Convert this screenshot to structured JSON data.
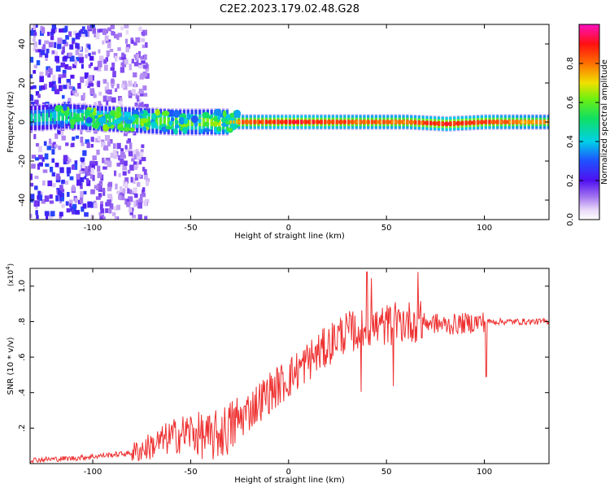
{
  "title": "C2E2.2023.179.02.48.G28",
  "chart_data": [
    {
      "type": "heatmap",
      "xlabel": "Height of straight line (km)",
      "ylabel": "Frequency (Hz)",
      "xlim": [
        -132,
        133
      ],
      "ylim": [
        -50,
        50
      ],
      "xticks": [
        -100,
        -50,
        0,
        50,
        100
      ],
      "yticks": [
        -40,
        -20,
        0,
        20,
        40
      ],
      "colorbar": {
        "label": "Normalized spectral amplitude",
        "range": [
          0,
          1
        ],
        "ticks": [
          0.0,
          0.2,
          0.4,
          0.6,
          0.8
        ]
      },
      "ridge": {
        "x": [
          -132,
          -115,
          -100,
          -80,
          -60,
          -40,
          -25,
          -10,
          0,
          20,
          40,
          60,
          80,
          100,
          133
        ],
        "frequency": [
          2,
          3,
          2,
          1,
          0,
          0,
          0,
          0,
          0,
          0,
          0,
          0,
          -1,
          0,
          0
        ],
        "amplitude": [
          0.2,
          0.3,
          0.35,
          0.4,
          0.45,
          0.5,
          0.8,
          0.85,
          0.9,
          0.85,
          0.8,
          0.8,
          0.9,
          0.85,
          0.7
        ]
      }
    },
    {
      "type": "line",
      "xlabel": "Height of straight line (km)",
      "ylabel": "SNR (10 * v/v)",
      "ylabel_exponent": "(x10",
      "ylabel_exponent_power": "4",
      "ylabel_exponent_close": ")",
      "xlim": [
        -132,
        133
      ],
      "ylim": [
        0,
        1.1
      ],
      "xticks": [
        -100,
        -50,
        0,
        50,
        100
      ],
      "yticks": [
        0.2,
        0.4,
        0.6,
        0.8,
        1.0
      ],
      "series": [
        {
          "color": "#ee3030",
          "x": [
            -132,
            -110,
            -90,
            -80,
            -70,
            -60,
            -50,
            -40,
            -30,
            -20,
            -10,
            0,
            10,
            20,
            25,
            30,
            40,
            50,
            60,
            70,
            80,
            90,
            100,
            110,
            120,
            133
          ],
          "y": [
            0.02,
            0.03,
            0.05,
            0.06,
            0.1,
            0.15,
            0.18,
            0.14,
            0.2,
            0.3,
            0.4,
            0.48,
            0.58,
            0.66,
            0.72,
            0.74,
            0.76,
            0.78,
            0.8,
            0.8,
            0.78,
            0.79,
            0.8,
            0.8,
            0.8,
            0.8
          ]
        }
      ]
    }
  ]
}
